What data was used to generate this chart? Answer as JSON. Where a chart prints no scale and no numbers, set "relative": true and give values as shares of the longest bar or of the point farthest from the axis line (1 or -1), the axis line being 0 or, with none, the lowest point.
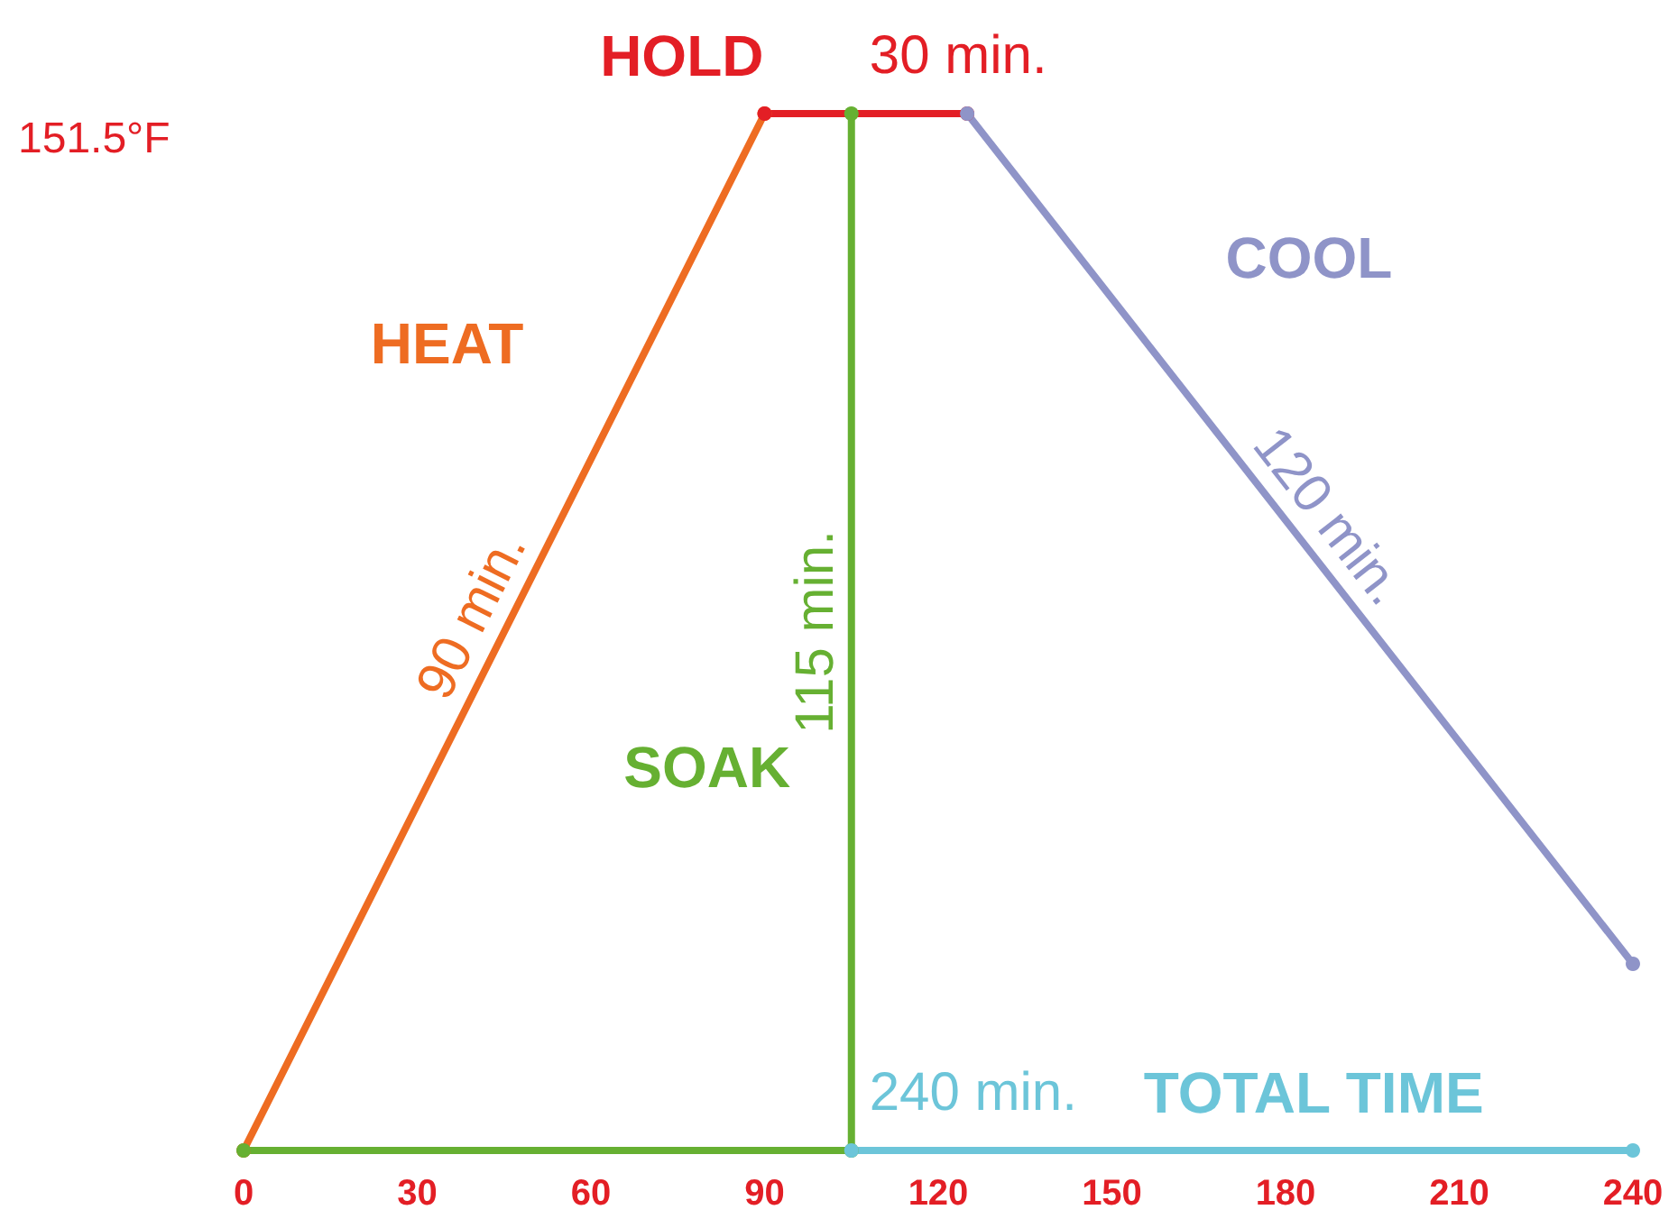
{
  "chart_data": {
    "type": "line",
    "relative": true,
    "xlim": [
      0,
      240
    ],
    "xticks": [
      0,
      30,
      60,
      90,
      120,
      150,
      180,
      210,
      240
    ],
    "grid": false,
    "marker": "circle",
    "line_style": "solid",
    "series": [
      {
        "name": "HEAT",
        "color": "#ee6c22",
        "x": [
          0,
          90
        ],
        "values": [
          0,
          1
        ]
      },
      {
        "name": "HOLD",
        "color": "#e31e25",
        "x": [
          90,
          125
        ],
        "values": [
          1,
          1
        ]
      },
      {
        "name": "SOAK",
        "color": "#66b032",
        "x": [
          0,
          105,
          105
        ],
        "values": [
          0,
          0,
          1
        ]
      },
      {
        "name": "COOL",
        "color": "#8f94c8",
        "x": [
          125,
          240
        ],
        "values": [
          1,
          0.18
        ]
      },
      {
        "name": "TOTAL TIME",
        "color": "#6cc5d9",
        "x": [
          105,
          240
        ],
        "values": [
          0,
          0
        ]
      }
    ],
    "annotations": [
      "151.5°F",
      "90 min.",
      "30 min.",
      "115 min.",
      "120 min.",
      "240 min."
    ]
  }
}
